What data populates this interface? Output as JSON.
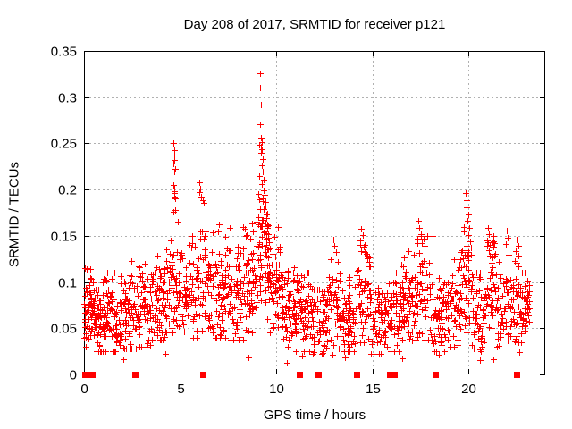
{
  "chart_data": {
    "type": "scatter",
    "title": "Day 208 of 2017, SRMTID for receiver p121",
    "xlabel": "GPS time / hours",
    "ylabel": "SRMTID / TECUs",
    "xlim": [
      0,
      24
    ],
    "ylim": [
      0,
      0.35
    ],
    "xticks": [
      0,
      5,
      10,
      15,
      20
    ],
    "xtick_labels": [
      "0",
      "5",
      "10",
      "15",
      "20"
    ],
    "yticks": [
      0,
      0.05,
      0.1,
      0.15,
      0.2,
      0.25,
      0.3,
      0.35
    ],
    "ytick_labels": [
      "0",
      "0.05",
      "0.1",
      "0.15",
      "0.2",
      "0.25",
      "0.3",
      "0.35"
    ],
    "grid": true,
    "legend": "none",
    "marker": {
      "shape": "plus",
      "color": "#ff0000",
      "size": 7
    },
    "grid_color": "#b0b0b0",
    "border_color": "#000000",
    "seed": 7,
    "bands_format": [
      "hour_start",
      "hour_end",
      "count",
      "center",
      "spread",
      "min",
      "max"
    ],
    "noise_bands": [
      [
        0.0,
        0.6,
        65,
        0.068,
        0.03,
        0.03,
        0.115
      ],
      [
        0.6,
        1.2,
        60,
        0.06,
        0.028,
        0.025,
        0.105
      ],
      [
        1.2,
        1.9,
        62,
        0.063,
        0.03,
        0.025,
        0.11
      ],
      [
        1.9,
        2.7,
        62,
        0.068,
        0.032,
        0.028,
        0.125
      ],
      [
        2.7,
        3.5,
        60,
        0.073,
        0.034,
        0.03,
        0.13
      ],
      [
        3.5,
        4.3,
        62,
        0.085,
        0.034,
        0.038,
        0.135
      ],
      [
        4.3,
        5.1,
        58,
        0.095,
        0.034,
        0.045,
        0.155
      ],
      [
        5.1,
        5.9,
        58,
        0.09,
        0.036,
        0.04,
        0.15
      ],
      [
        5.9,
        6.7,
        58,
        0.095,
        0.038,
        0.045,
        0.155
      ],
      [
        6.7,
        7.5,
        62,
        0.092,
        0.038,
        0.04,
        0.16
      ],
      [
        7.5,
        8.3,
        62,
        0.09,
        0.04,
        0.038,
        0.16
      ],
      [
        8.3,
        9.0,
        58,
        0.1,
        0.042,
        0.045,
        0.165
      ],
      [
        9.0,
        9.6,
        52,
        0.125,
        0.045,
        0.06,
        0.2
      ],
      [
        9.6,
        10.2,
        52,
        0.095,
        0.04,
        0.045,
        0.16
      ],
      [
        10.2,
        11.0,
        58,
        0.075,
        0.032,
        0.03,
        0.13
      ],
      [
        11.0,
        11.8,
        58,
        0.064,
        0.03,
        0.025,
        0.11
      ],
      [
        11.8,
        12.6,
        58,
        0.057,
        0.028,
        0.022,
        0.1
      ],
      [
        12.6,
        13.4,
        58,
        0.068,
        0.032,
        0.028,
        0.125
      ],
      [
        13.4,
        14.1,
        54,
        0.06,
        0.028,
        0.025,
        0.105
      ],
      [
        14.1,
        14.9,
        54,
        0.08,
        0.034,
        0.035,
        0.14
      ],
      [
        14.9,
        15.7,
        54,
        0.058,
        0.028,
        0.022,
        0.1
      ],
      [
        15.7,
        16.5,
        54,
        0.065,
        0.03,
        0.025,
        0.11
      ],
      [
        16.5,
        17.2,
        54,
        0.08,
        0.032,
        0.035,
        0.13
      ],
      [
        17.2,
        18.0,
        54,
        0.085,
        0.036,
        0.038,
        0.15
      ],
      [
        18.0,
        18.8,
        54,
        0.063,
        0.03,
        0.025,
        0.11
      ],
      [
        18.8,
        19.6,
        54,
        0.075,
        0.032,
        0.03,
        0.125
      ],
      [
        19.6,
        20.2,
        44,
        0.1,
        0.04,
        0.045,
        0.17
      ],
      [
        20.2,
        20.9,
        48,
        0.062,
        0.03,
        0.025,
        0.11
      ],
      [
        20.9,
        21.4,
        40,
        0.095,
        0.034,
        0.05,
        0.15
      ],
      [
        21.4,
        22.1,
        48,
        0.075,
        0.032,
        0.03,
        0.13
      ],
      [
        22.1,
        22.7,
        44,
        0.08,
        0.032,
        0.035,
        0.135
      ],
      [
        22.7,
        23.2,
        40,
        0.073,
        0.026,
        0.035,
        0.11
      ]
    ],
    "outlier_points": [
      [
        4.65,
        0.25
      ],
      [
        4.68,
        0.243
      ],
      [
        4.7,
        0.237
      ],
      [
        4.72,
        0.232
      ],
      [
        4.67,
        0.228
      ],
      [
        4.73,
        0.222
      ],
      [
        4.71,
        0.219
      ],
      [
        4.66,
        0.205
      ],
      [
        4.7,
        0.201
      ],
      [
        4.68,
        0.198
      ],
      [
        4.72,
        0.196
      ],
      [
        4.69,
        0.192
      ],
      [
        4.74,
        0.19
      ],
      [
        4.76,
        0.178
      ],
      [
        4.64,
        0.176
      ],
      [
        4.9,
        0.165
      ],
      [
        6.02,
        0.208
      ],
      [
        6.06,
        0.201
      ],
      [
        6.0,
        0.197
      ],
      [
        6.1,
        0.192
      ],
      [
        6.18,
        0.189
      ],
      [
        6.22,
        0.186
      ],
      [
        6.12,
        0.155
      ],
      [
        6.3,
        0.15
      ],
      [
        7.02,
        0.162
      ],
      [
        6.98,
        0.155
      ],
      [
        8.35,
        0.158
      ],
      [
        9.15,
        0.326
      ],
      [
        9.17,
        0.31
      ],
      [
        9.19,
        0.292
      ],
      [
        9.16,
        0.271
      ],
      [
        9.21,
        0.256
      ],
      [
        9.24,
        0.251
      ],
      [
        9.19,
        0.247
      ],
      [
        9.27,
        0.244
      ],
      [
        9.22,
        0.24
      ],
      [
        9.29,
        0.233
      ],
      [
        9.25,
        0.226
      ],
      [
        9.31,
        0.219
      ],
      [
        9.34,
        0.211
      ],
      [
        9.27,
        0.206
      ],
      [
        9.37,
        0.199
      ],
      [
        9.4,
        0.194
      ],
      [
        9.32,
        0.19
      ],
      [
        9.42,
        0.187
      ],
      [
        9.45,
        0.183
      ],
      [
        9.35,
        0.179
      ],
      [
        9.47,
        0.173
      ],
      [
        9.5,
        0.169
      ],
      [
        9.43,
        0.164
      ],
      [
        9.54,
        0.159
      ],
      [
        9.51,
        0.153
      ],
      [
        9.1,
        0.248
      ],
      [
        9.12,
        0.215
      ],
      [
        9.08,
        0.195
      ],
      [
        9.05,
        0.17
      ],
      [
        9.58,
        0.148
      ],
      [
        9.62,
        0.143
      ],
      [
        12.98,
        0.146
      ],
      [
        13.04,
        0.139
      ],
      [
        13.1,
        0.132
      ],
      [
        14.42,
        0.158
      ],
      [
        14.5,
        0.151
      ],
      [
        14.38,
        0.145
      ],
      [
        14.55,
        0.138
      ],
      [
        14.6,
        0.132
      ],
      [
        16.9,
        0.133
      ],
      [
        17.38,
        0.166
      ],
      [
        17.45,
        0.159
      ],
      [
        17.52,
        0.152
      ],
      [
        17.33,
        0.147
      ],
      [
        17.58,
        0.142
      ],
      [
        18.15,
        0.15
      ],
      [
        19.88,
        0.196
      ],
      [
        19.93,
        0.189
      ],
      [
        19.9,
        0.181
      ],
      [
        19.98,
        0.173
      ],
      [
        19.95,
        0.166
      ],
      [
        20.03,
        0.159
      ],
      [
        20.0,
        0.151
      ],
      [
        20.08,
        0.144
      ],
      [
        21.02,
        0.159
      ],
      [
        21.08,
        0.152
      ],
      [
        20.98,
        0.145
      ],
      [
        21.12,
        0.14
      ],
      [
        22.0,
        0.156
      ],
      [
        22.05,
        0.148
      ],
      [
        21.95,
        0.141
      ],
      [
        22.55,
        0.146
      ],
      [
        22.62,
        0.139
      ],
      [
        22.48,
        0.133
      ],
      [
        2.05,
        0.016
      ],
      [
        4.22,
        0.022
      ],
      [
        8.55,
        0.018
      ],
      [
        10.55,
        0.013
      ],
      [
        11.35,
        0.02
      ],
      [
        12.95,
        0.021
      ],
      [
        13.6,
        0.018
      ],
      [
        16.55,
        0.017
      ],
      [
        18.45,
        0.021
      ],
      [
        20.6,
        0.015
      ],
      [
        21.3,
        0.016
      ],
      [
        22.65,
        0.024
      ]
    ],
    "zero_marker_hours": [
      0.05,
      0.2,
      0.4,
      2.65,
      6.2,
      11.2,
      12.2,
      14.2,
      15.9,
      16.15,
      18.3,
      22.5
    ]
  }
}
